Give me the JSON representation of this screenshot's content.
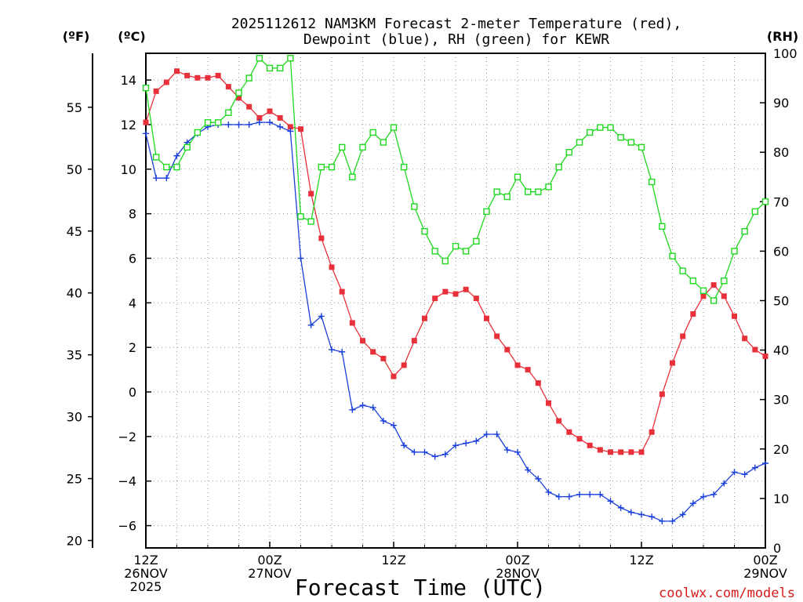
{
  "chart_data": {
    "type": "line",
    "title_lines": [
      "2025112612 NAM3KM Forecast 2-meter Temperature (red),",
      "Dewpoint (blue), RH (green) for KEWR"
    ],
    "xlabel": "Forecast Time (UTC)",
    "credit": "coolwx.com/models",
    "unit_labels": {
      "fahrenheit": "(ºF)",
      "celsius": "(ºC)",
      "rh": "(RH)"
    },
    "x_hours_range": [
      0,
      60
    ],
    "ylim_celsius": [
      -7,
      15.2
    ],
    "ylim_rh": [
      0,
      100
    ],
    "x_ticks": [
      {
        "hour": 0,
        "lines": [
          "12Z",
          "26NOV",
          "2025"
        ]
      },
      {
        "hour": 12,
        "lines": [
          "00Z",
          "27NOV"
        ]
      },
      {
        "hour": 24,
        "lines": [
          "12Z"
        ]
      },
      {
        "hour": 36,
        "lines": [
          "00Z",
          "28NOV"
        ]
      },
      {
        "hour": 48,
        "lines": [
          "12Z"
        ]
      },
      {
        "hour": 60,
        "lines": [
          "00Z",
          "29NOV"
        ]
      }
    ],
    "celsius_ticks": [
      "−6",
      "−4",
      "−2",
      "0",
      "2",
      "4",
      "6",
      "8",
      "10",
      "12",
      "14"
    ],
    "fahrenheit_ticks": [
      "20",
      "25",
      "30",
      "35",
      "40",
      "45",
      "50",
      "55"
    ],
    "rh_ticks": [
      "0",
      "10",
      "20",
      "30",
      "40",
      "50",
      "60",
      "70",
      "80",
      "90",
      "100"
    ],
    "hours": [
      0,
      1,
      2,
      3,
      4,
      5,
      6,
      7,
      8,
      9,
      10,
      11,
      12,
      13,
      14,
      15,
      16,
      17,
      18,
      19,
      20,
      21,
      22,
      23,
      24,
      25,
      26,
      27,
      28,
      29,
      30,
      31,
      32,
      33,
      34,
      35,
      36,
      37,
      38,
      39,
      40,
      41,
      42,
      43,
      44,
      45,
      46,
      47,
      48,
      49,
      50,
      51,
      52,
      53,
      54,
      55,
      56,
      57,
      58,
      59,
      60
    ],
    "series": [
      {
        "name": "Temperature",
        "unit": "°C",
        "color": "#e8303a",
        "marker": "filled-square",
        "values": [
          12.1,
          13.5,
          13.9,
          14.4,
          14.2,
          14.1,
          14.1,
          14.2,
          13.7,
          13.2,
          12.8,
          12.3,
          12.6,
          12.3,
          11.9,
          11.8,
          8.9,
          6.9,
          5.6,
          4.5,
          3.1,
          2.3,
          1.8,
          1.5,
          0.7,
          1.2,
          2.3,
          3.3,
          4.2,
          4.5,
          4.4,
          4.6,
          4.2,
          3.3,
          2.5,
          1.9,
          1.2,
          1.0,
          0.4,
          -0.5,
          -1.3,
          -1.8,
          -2.1,
          -2.4,
          -2.6,
          -2.7,
          -2.7,
          -2.7,
          -2.7,
          -1.8,
          -0.1,
          1.3,
          2.5,
          3.5,
          4.3,
          4.8,
          4.3,
          3.4,
          2.4,
          1.9,
          1.6
        ]
      },
      {
        "name": "Dewpoint",
        "unit": "°C",
        "color": "#1a3fdc",
        "marker": "plus",
        "values": [
          11.6,
          9.6,
          9.6,
          10.6,
          11.2,
          11.6,
          11.9,
          12.0,
          12.0,
          12.0,
          12.0,
          12.1,
          12.1,
          11.9,
          11.7,
          6.0,
          3.0,
          3.4,
          1.9,
          1.8,
          -0.8,
          -0.6,
          -0.7,
          -1.3,
          -1.5,
          -2.4,
          -2.7,
          -2.7,
          -2.9,
          -2.8,
          -2.4,
          -2.3,
          -2.2,
          -1.9,
          -1.9,
          -2.6,
          -2.7,
          -3.5,
          -3.9,
          -4.5,
          -4.7,
          -4.7,
          -4.6,
          -4.6,
          -4.6,
          -4.9,
          -5.2,
          -5.4,
          -5.5,
          -5.6,
          -5.8,
          -5.8,
          -5.5,
          -5.0,
          -4.7,
          -4.6,
          -4.1,
          -3.6,
          -3.7,
          -3.4,
          -3.2
        ]
      },
      {
        "name": "RH",
        "unit": "%",
        "color": "#1fd81f",
        "marker": "open-square",
        "values": [
          93,
          79,
          77,
          77,
          81,
          84,
          86,
          86,
          88,
          92,
          95,
          99,
          97,
          97,
          99,
          67,
          66,
          77,
          77,
          81,
          75,
          81,
          84,
          82,
          85,
          77,
          69,
          64,
          60,
          58,
          61,
          60,
          62,
          68,
          72,
          71,
          75,
          72,
          72,
          73,
          77,
          80,
          82,
          84,
          85,
          85,
          83,
          82,
          81,
          74,
          65,
          59,
          56,
          54,
          52,
          50,
          54,
          60,
          64,
          68,
          70
        ]
      }
    ]
  }
}
